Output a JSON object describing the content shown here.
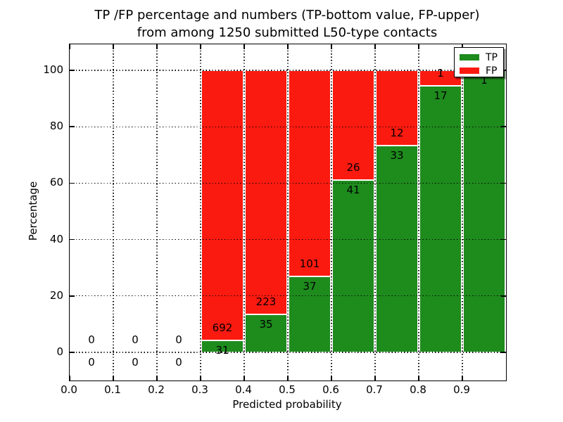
{
  "chart_data": {
    "type": "bar",
    "stacked": true,
    "title_line1": "TP /FP percentage and numbers (TP-bottom value, FP-upper)",
    "title_line2": "from among 1250 submitted L50-type contacts",
    "xlabel": "Predicted probability",
    "ylabel": "Percentage",
    "xlim": [
      0.0,
      1.0
    ],
    "ylim": [
      -10,
      110
    ],
    "x_tick_labels": [
      "0.0",
      "0.1",
      "0.2",
      "0.3",
      "0.4",
      "0.5",
      "0.6",
      "0.7",
      "0.8",
      "0.9"
    ],
    "y_ticks": [
      0,
      20,
      40,
      60,
      80,
      100
    ],
    "y_tick_labels": [
      "0",
      "20",
      "40",
      "60",
      "80",
      "100"
    ],
    "grid": "dotted black, on",
    "legend_position": "upper right",
    "bin_edges": [
      0.0,
      0.1,
      0.2,
      0.3,
      0.4,
      0.5,
      0.6,
      0.7,
      0.8,
      0.9,
      1.0
    ],
    "series": [
      {
        "name": "TP",
        "color": "#1e8b1d",
        "counts": [
          0,
          0,
          0,
          31,
          35,
          37,
          41,
          33,
          17,
          1
        ]
      },
      {
        "name": "FP",
        "color": "#fb1a10",
        "counts": [
          0,
          0,
          0,
          692,
          223,
          101,
          26,
          12,
          1,
          0
        ]
      }
    ],
    "tp_percent_of_bin": [
      null,
      null,
      null,
      4.3,
      13.6,
      26.8,
      61.2,
      73.3,
      94.4,
      100.0
    ],
    "total_submitted": 1250
  },
  "colors": {
    "tp_green": "#1e8b1d",
    "fp_red": "#fb1a10",
    "axes": "#000000",
    "background": "#ffffff"
  }
}
